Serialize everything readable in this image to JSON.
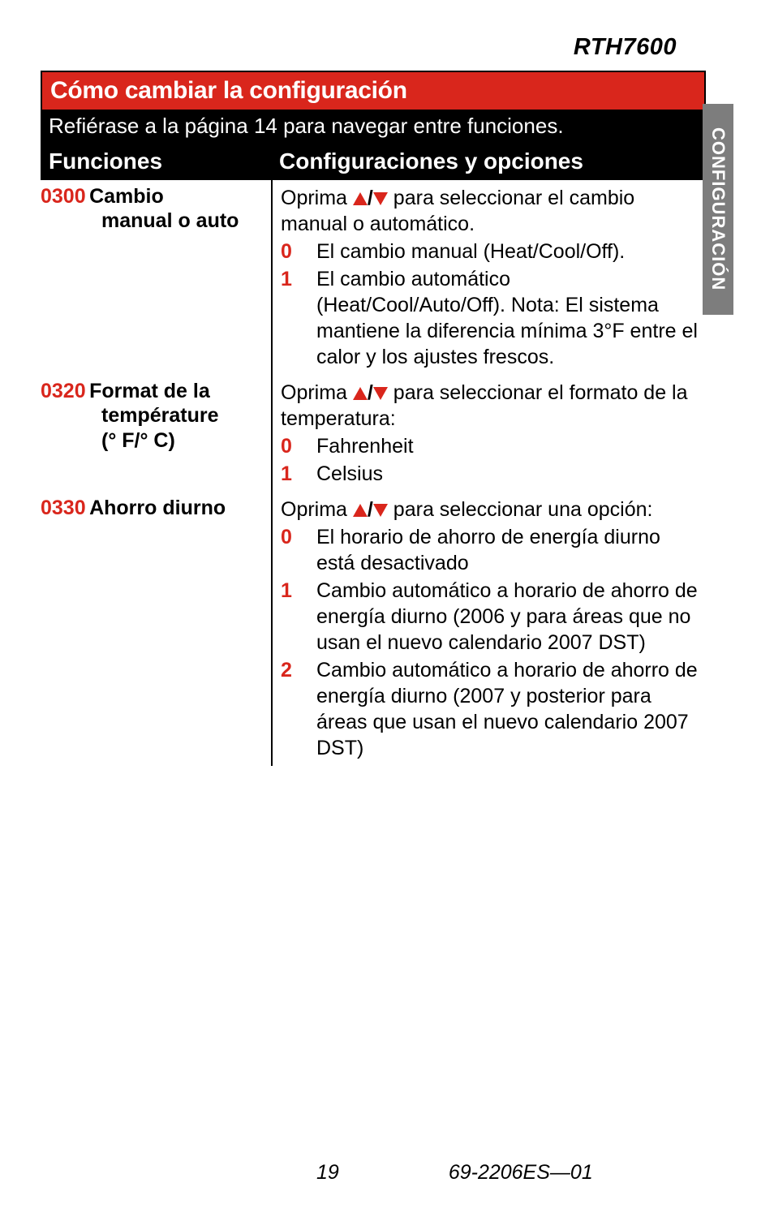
{
  "model": "RTH7600",
  "side_tab": "CONFIGURACIÓN",
  "title": "Cómo cambiar la configuración",
  "subtitle": "Refiérase a la página 14 para navegar entre funciones.",
  "header": {
    "left": "Funciones",
    "right": "Configuraciones y opciones"
  },
  "rows": [
    {
      "code": "0300",
      "name_first": "Cambio",
      "name_rest": "manual o auto",
      "intro_pre": "Oprima ",
      "intro_post_bold": "/",
      "intro_post": " para seleccionar el cambio manual o automático.",
      "options": [
        {
          "n": "0",
          "t": "El cambio manual (Heat/Cool/Off)."
        },
        {
          "n": "1",
          "t": "El cambio automático (Heat/Cool/Auto/Off). Nota: El sistema mantiene la diferencia mínima 3°F entre el calor y los ajustes frescos."
        }
      ]
    },
    {
      "code": "0320",
      "name_first": "Format de la",
      "name_rest": "température\n(° F/° C)",
      "intro_pre": "Oprima ",
      "intro_post": " para seleccionar el formato de la temperatura:",
      "options": [
        {
          "n": "0",
          "t": "Fahrenheit"
        },
        {
          "n": "1",
          "t": "Celsius"
        }
      ]
    },
    {
      "code": "0330",
      "name_first": "Ahorro diurno",
      "name_rest": "",
      "intro_pre": "Oprima ",
      "intro_post": " para seleccionar una opción:",
      "options": [
        {
          "n": "0",
          "t": "El horario de ahorro de energía diurno está desactivado"
        },
        {
          "n": "1",
          "t": "Cambio automático a horario de ahorro de energía diurno (2006 y para áreas que no usan el nuevo calendario 2007 DST)"
        },
        {
          "n": "2",
          "t": "Cambio automático a horario de ahorro de energía diurno (2007 y posterior para áreas que usan el nuevo calendario 2007 DST)"
        }
      ]
    }
  ],
  "footer": {
    "page": "19",
    "doc": "69-2206ES—01"
  },
  "colors": {
    "red": "#d9261c",
    "black": "#000000",
    "grey": "#7d7d7d",
    "white": "#ffffff"
  }
}
